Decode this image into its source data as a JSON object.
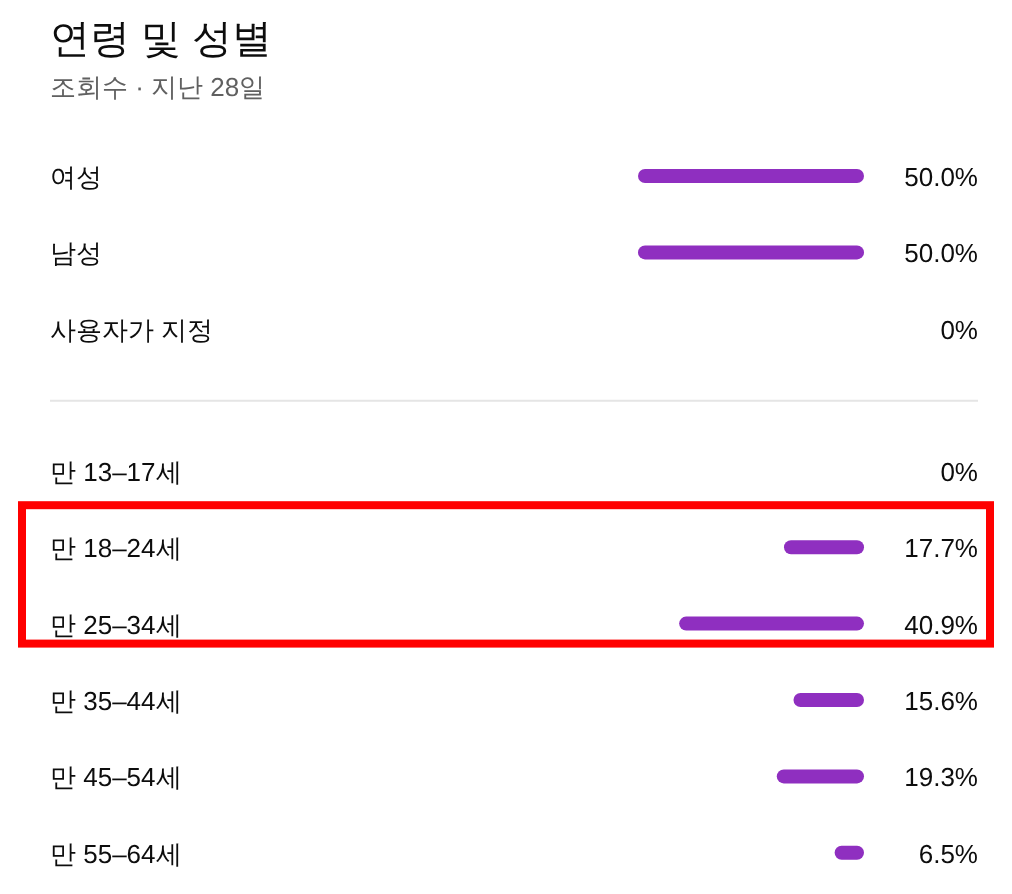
{
  "chart_data": [
    {
      "type": "bar",
      "orientation": "horizontal",
      "title": "연령 및 성별",
      "subtitle": "조회수 · 지난 28일",
      "categories": [
        "여성",
        "남성",
        "사용자가 지정"
      ],
      "values": [
        50.0,
        50.0,
        0
      ],
      "value_labels": [
        "50.0%",
        "50.0%",
        "0%"
      ],
      "color": "#8f2fc0"
    },
    {
      "type": "bar",
      "orientation": "horizontal",
      "categories": [
        "만 13–17세",
        "만 18–24세",
        "만 25–34세",
        "만 35–44세",
        "만 45–54세",
        "만 55–64세"
      ],
      "values": [
        0,
        17.7,
        40.9,
        15.6,
        19.3,
        6.5
      ],
      "value_labels": [
        "0%",
        "17.7%",
        "40.9%",
        "15.6%",
        "19.3%",
        "6.5%"
      ],
      "color": "#8f2fc0"
    }
  ]
}
